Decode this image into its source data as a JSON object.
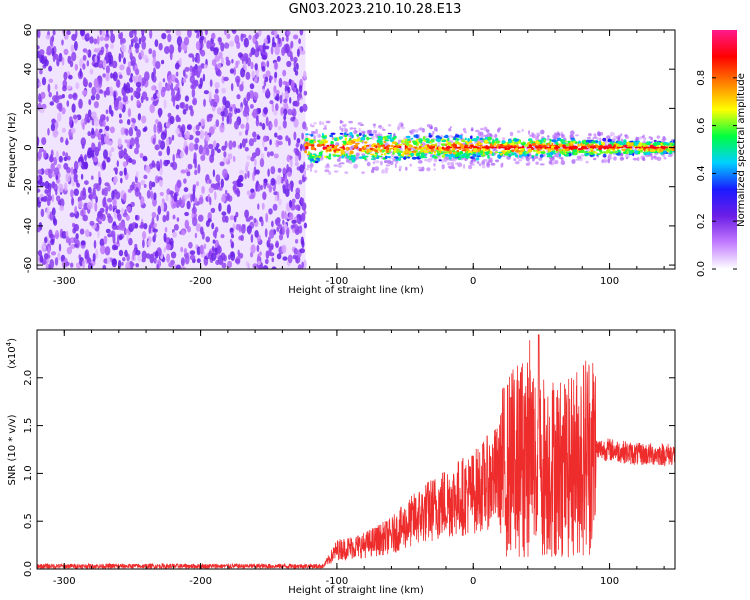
{
  "title": "GN03.2023.210.10.28.E13",
  "chart_data": [
    {
      "type": "heatmap",
      "xlabel": "Height of straight line (km)",
      "ylabel": "Frequency (Hz)",
      "xlim": [
        -320,
        148
      ],
      "ylim": [
        -62,
        60
      ],
      "xticks": [
        -300,
        -200,
        -100,
        0,
        100
      ],
      "yticks": [
        -60,
        -40,
        -20,
        0,
        20,
        40,
        60
      ],
      "noise_region": [
        -320,
        -123
      ],
      "signal_band": {
        "x": [
          -123,
          148
        ],
        "center_hz": 0,
        "half_width_hz": [
          8,
          3
        ]
      },
      "colorbar": {
        "label": "Normalized spectral amplitude",
        "range": [
          0,
          1
        ],
        "ticks": [
          0.0,
          0.2,
          0.4,
          0.6,
          0.8
        ],
        "colors": [
          "#ffffff",
          "#c27bff",
          "#6c1ee6",
          "#1a1aff",
          "#00d0ff",
          "#00ff40",
          "#ffff00",
          "#ff8000",
          "#ff0000",
          "#ff1a8c"
        ]
      }
    },
    {
      "type": "line",
      "xlabel": "Height of straight line (km)",
      "ylabel": "SNR (10 * v/v)",
      "yscale_note": "(x10",
      "yscale_exp": "4",
      "xlim": [
        -320,
        148
      ],
      "ylim": [
        0,
        2.5
      ],
      "xticks": [
        -300,
        -200,
        -100,
        0,
        100
      ],
      "yticks": [
        0.0,
        0.5,
        1.0,
        1.5,
        2.0
      ],
      "color": "#ee2c2c",
      "envelope": [
        {
          "x": -320,
          "y": 0.03
        },
        {
          "x": -110,
          "y": 0.03
        },
        {
          "x": -100,
          "y": 0.2
        },
        {
          "x": -80,
          "y": 0.25
        },
        {
          "x": -60,
          "y": 0.35
        },
        {
          "x": -40,
          "y": 0.55
        },
        {
          "x": -20,
          "y": 0.7
        },
        {
          "x": 0,
          "y": 0.8
        },
        {
          "x": 20,
          "y": 1.0
        },
        {
          "x": 35,
          "y": 1.2
        },
        {
          "x": 50,
          "y": 1.1
        },
        {
          "x": 70,
          "y": 1.05
        },
        {
          "x": 85,
          "y": 1.25
        },
        {
          "x": 100,
          "y": 1.25
        },
        {
          "x": 120,
          "y": 1.2
        },
        {
          "x": 148,
          "y": 1.2
        }
      ],
      "peak": {
        "x": 48,
        "y": 2.45
      }
    }
  ]
}
